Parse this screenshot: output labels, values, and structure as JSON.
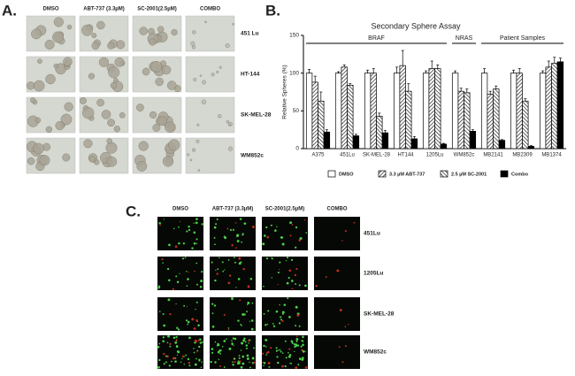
{
  "panels": {
    "a": {
      "label": "A.",
      "columns": [
        "DMSO",
        "ABT-737 (3.3µM)",
        "SC-2001(2.5µM)",
        "COMBO"
      ],
      "rows": [
        "451 Lu",
        "HT-144",
        "SK-MEL-28",
        "WM852c"
      ]
    },
    "b": {
      "label": "B."
    },
    "c": {
      "label": "C.",
      "columns": [
        "DMSO",
        "ABT-737 (3.3µM)",
        "SC-2001(2.5µM)",
        "COMBO"
      ],
      "rows": [
        "451Lu",
        "1205Lu",
        "SK-MEL-28",
        "WM852c"
      ]
    }
  },
  "chart_data": {
    "type": "bar",
    "title": "Secondary Sphere Assay",
    "y_label": "Relative Spheres (%)",
    "categories": [
      "A375",
      "451Lu",
      "SK-MEL-28",
      "HT144",
      "1205Lu",
      "WM852c",
      "MB2141",
      "MB2309",
      "MB1374"
    ],
    "groups": [
      {
        "label": "BRAF",
        "categories": [
          "A375",
          "451Lu",
          "SK-MEL-28",
          "HT144",
          "1205Lu"
        ]
      },
      {
        "label": "NRAS",
        "categories": [
          "WM852c"
        ]
      },
      {
        "label": "Patient Samples",
        "categories": [
          "MB2141",
          "MB2309",
          "MB1374"
        ]
      }
    ],
    "series": [
      {
        "name": "DMSO",
        "color": "#ffffff",
        "hatch": "none",
        "values": [
          100,
          100,
          100,
          100,
          100,
          100,
          100,
          100,
          100
        ],
        "errors": [
          5,
          2,
          4,
          8,
          3,
          3,
          6,
          4,
          3
        ]
      },
      {
        "name": "3.3 µM ABT-737",
        "color": "#ffffff",
        "hatch": "/",
        "values": [
          88,
          108,
          100,
          110,
          106,
          76,
          72,
          100,
          108
        ],
        "errors": [
          8,
          3,
          6,
          20,
          10,
          4,
          4,
          6,
          8
        ]
      },
      {
        "name": "2.5 µM SC-2001",
        "color": "#ffffff",
        "hatch": "\\",
        "values": [
          63,
          84,
          43,
          76,
          106,
          74,
          79,
          63,
          113
        ],
        "errors": [
          12,
          2,
          4,
          10,
          5,
          5,
          4,
          3,
          8
        ]
      },
      {
        "name": "Combo",
        "color": "#000000",
        "hatch": "none",
        "values": [
          22,
          17,
          21,
          13,
          6,
          23,
          11,
          3,
          115
        ],
        "errors": [
          3,
          2,
          3,
          3,
          1,
          2,
          1,
          1,
          5
        ]
      }
    ],
    "ylim": [
      0,
      150
    ],
    "yticks": [
      0,
      50,
      100,
      150
    ],
    "grid": false
  }
}
